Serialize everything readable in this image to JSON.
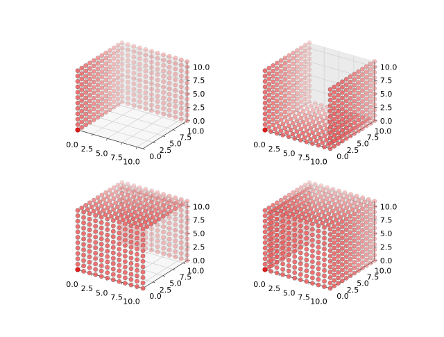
{
  "figure": {
    "description_free": true
  },
  "chart_data": [
    {
      "type": "scatter3d",
      "panel": "top-left",
      "grid_points": [
        0,
        1,
        2,
        3,
        4,
        5,
        6,
        7,
        8,
        9,
        10,
        11
      ],
      "xlim": [
        0,
        11
      ],
      "ylim": [
        0,
        11
      ],
      "zlim": [
        0,
        11
      ],
      "x_ticks": [
        0.0,
        2.5,
        5.0,
        7.5,
        10.0
      ],
      "y_ticks": [
        0.0,
        2.5,
        5.0,
        7.5,
        10.0
      ],
      "z_ticks": [
        0.0,
        2.5,
        5.0,
        7.5,
        10.0
      ],
      "x_tick_labels": [
        "0.0",
        "2.5",
        "5.0",
        "7.5",
        "10.0"
      ],
      "y_tick_labels": [
        "0.0",
        "2.5",
        "5.0",
        "7.5",
        "10.0"
      ],
      "z_tick_labels": [
        "0.0",
        "2.5",
        "5.0",
        "7.5",
        "10.0"
      ],
      "faces": [
        "x=0",
        "y=11"
      ],
      "highlight": [
        0,
        0,
        0
      ],
      "grid": true,
      "point_color": "#f05a5a",
      "point_edge": "#555555"
    },
    {
      "type": "scatter3d",
      "panel": "top-right",
      "grid_points": [
        0,
        1,
        2,
        3,
        4,
        5,
        6,
        7,
        8,
        9,
        10,
        11
      ],
      "xlim": [
        0,
        11
      ],
      "ylim": [
        0,
        11
      ],
      "zlim": [
        0,
        11
      ],
      "x_ticks": [
        0.0,
        2.5,
        5.0,
        7.5,
        10.0
      ],
      "y_ticks": [
        0.0,
        2.5,
        5.0,
        7.5,
        10.0
      ],
      "z_ticks": [
        0.0,
        2.5,
        5.0,
        7.5,
        10.0
      ],
      "x_tick_labels": [
        "0.0",
        "2.5",
        "5.0",
        "7.5",
        "10.0"
      ],
      "y_tick_labels": [
        "0.0",
        "2.5",
        "5.0",
        "7.5",
        "10.0"
      ],
      "z_tick_labels": [
        "0.0",
        "2.5",
        "5.0",
        "7.5",
        "10.0"
      ],
      "faces": [
        "x=0",
        "x=11",
        "z=0"
      ],
      "highlight": [
        0,
        0,
        0
      ],
      "grid": true,
      "point_color": "#f05a5a",
      "point_edge": "#555555"
    },
    {
      "type": "scatter3d",
      "panel": "bottom-left",
      "grid_points": [
        0,
        1,
        2,
        3,
        4,
        5,
        6,
        7,
        8,
        9,
        10,
        11
      ],
      "xlim": [
        0,
        11
      ],
      "ylim": [
        0,
        11
      ],
      "zlim": [
        0,
        11
      ],
      "x_ticks": [
        0.0,
        2.5,
        5.0,
        7.5,
        10.0
      ],
      "y_ticks": [
        0.0,
        2.5,
        5.0,
        7.5,
        10.0
      ],
      "z_ticks": [
        0.0,
        2.5,
        5.0,
        7.5,
        10.0
      ],
      "x_tick_labels": [
        "0.0",
        "2.5",
        "5.0",
        "7.5",
        "10.0"
      ],
      "y_tick_labels": [
        "0.0",
        "2.5",
        "5.0",
        "7.5",
        "10.0"
      ],
      "z_tick_labels": [
        "0.0",
        "2.5",
        "5.0",
        "7.5",
        "10.0"
      ],
      "faces": [
        "y=0",
        "y=11",
        "z=11"
      ],
      "highlight": [
        0,
        0,
        0
      ],
      "grid": true,
      "point_color": "#f05a5a",
      "point_edge": "#555555"
    },
    {
      "type": "scatter3d",
      "panel": "bottom-right",
      "grid_points": [
        0,
        1,
        2,
        3,
        4,
        5,
        6,
        7,
        8,
        9,
        10,
        11
      ],
      "xlim": [
        0,
        11
      ],
      "ylim": [
        0,
        11
      ],
      "zlim": [
        0,
        11
      ],
      "x_ticks": [
        0.0,
        2.5,
        5.0,
        7.5,
        10.0
      ],
      "y_ticks": [
        0.0,
        2.5,
        5.0,
        7.5,
        10.0
      ],
      "z_ticks": [
        0.0,
        2.5,
        5.0,
        7.5,
        10.0
      ],
      "x_tick_labels": [
        "0.0",
        "2.5",
        "5.0",
        "7.5",
        "10.0"
      ],
      "y_tick_labels": [
        "0.0",
        "2.5",
        "5.0",
        "7.5",
        "10.0"
      ],
      "z_tick_labels": [
        "0.0",
        "2.5",
        "5.0",
        "7.5",
        "10.0"
      ],
      "faces": [
        "y=0",
        "x=0",
        "x=11",
        "z=11"
      ],
      "highlight": [
        0,
        0,
        0
      ],
      "grid": true,
      "point_color": "#f05a5a",
      "point_edge": "#555555"
    }
  ]
}
